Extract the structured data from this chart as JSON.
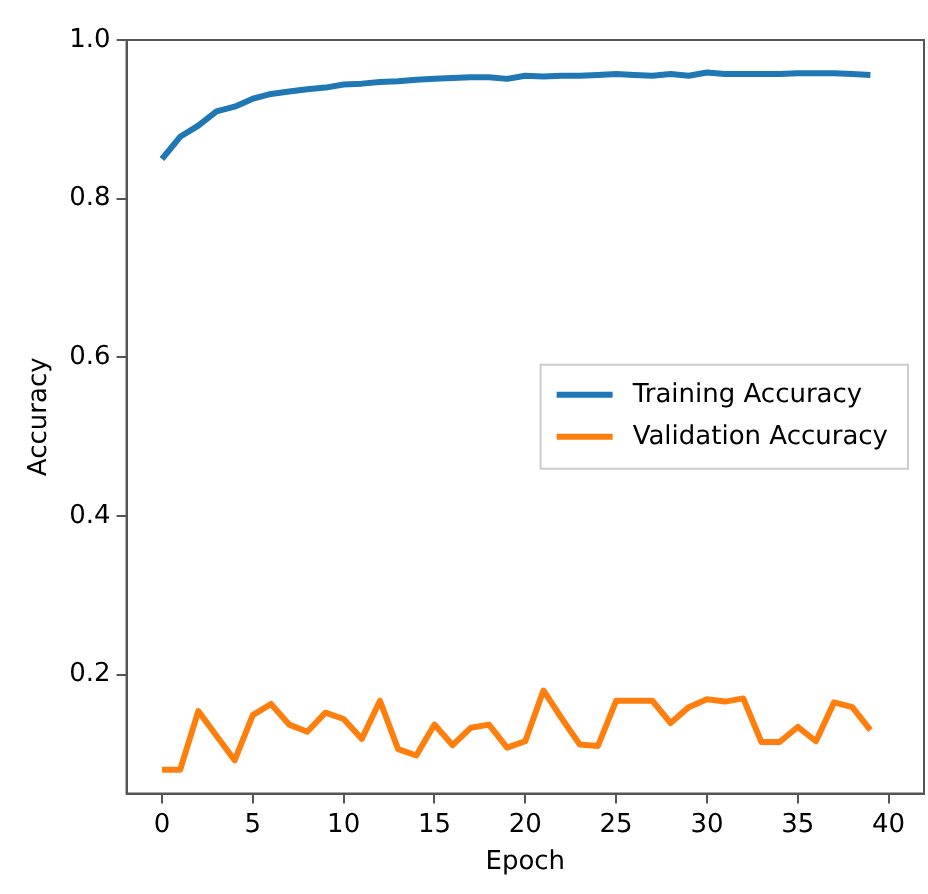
{
  "chart_data": {
    "type": "line",
    "xlabel": "Epoch",
    "ylabel": "Accuracy",
    "x": [
      0,
      1,
      2,
      3,
      4,
      5,
      6,
      7,
      8,
      9,
      10,
      11,
      12,
      13,
      14,
      15,
      16,
      17,
      18,
      19,
      20,
      21,
      22,
      23,
      24,
      25,
      26,
      27,
      28,
      29,
      30,
      31,
      32,
      33,
      34,
      35,
      36,
      37,
      38,
      39
    ],
    "series": [
      {
        "name": "Training Accuracy",
        "color": "#1f77b4",
        "values": [
          0.85,
          0.878,
          0.892,
          0.91,
          0.916,
          0.926,
          0.932,
          0.935,
          0.938,
          0.94,
          0.944,
          0.945,
          0.947,
          0.948,
          0.95,
          0.951,
          0.952,
          0.953,
          0.953,
          0.951,
          0.955,
          0.954,
          0.955,
          0.955,
          0.956,
          0.957,
          0.956,
          0.955,
          0.957,
          0.955,
          0.959,
          0.957,
          0.957,
          0.957,
          0.957,
          0.958,
          0.958,
          0.958,
          0.957,
          0.956
        ]
      },
      {
        "name": "Validation Accuracy",
        "color": "#ff7f0e",
        "values": [
          0.08,
          0.08,
          0.154,
          0.123,
          0.092,
          0.149,
          0.163,
          0.137,
          0.128,
          0.152,
          0.144,
          0.119,
          0.167,
          0.106,
          0.098,
          0.137,
          0.111,
          0.133,
          0.137,
          0.108,
          0.116,
          0.18,
          0.145,
          0.112,
          0.11,
          0.167,
          0.167,
          0.167,
          0.139,
          0.159,
          0.169,
          0.166,
          0.17,
          0.115,
          0.115,
          0.134,
          0.116,
          0.165,
          0.159,
          0.13
        ]
      }
    ],
    "xlim": [
      -1.95,
      41.95
    ],
    "xticks": [
      0,
      5,
      10,
      15,
      20,
      25,
      30,
      35,
      40
    ],
    "ylim": [
      0.05,
      1.0
    ],
    "yticks": [
      {
        "value": 0.2,
        "label": "0.2"
      },
      {
        "value": 0.4,
        "label": "0.4"
      },
      {
        "value": 0.6,
        "label": "0.6"
      },
      {
        "value": 0.8,
        "label": "0.8"
      },
      {
        "value": 1.0,
        "label": "1.0"
      }
    ],
    "grid": false,
    "legend": "right",
    "marker": "none",
    "line_style": "solid"
  }
}
